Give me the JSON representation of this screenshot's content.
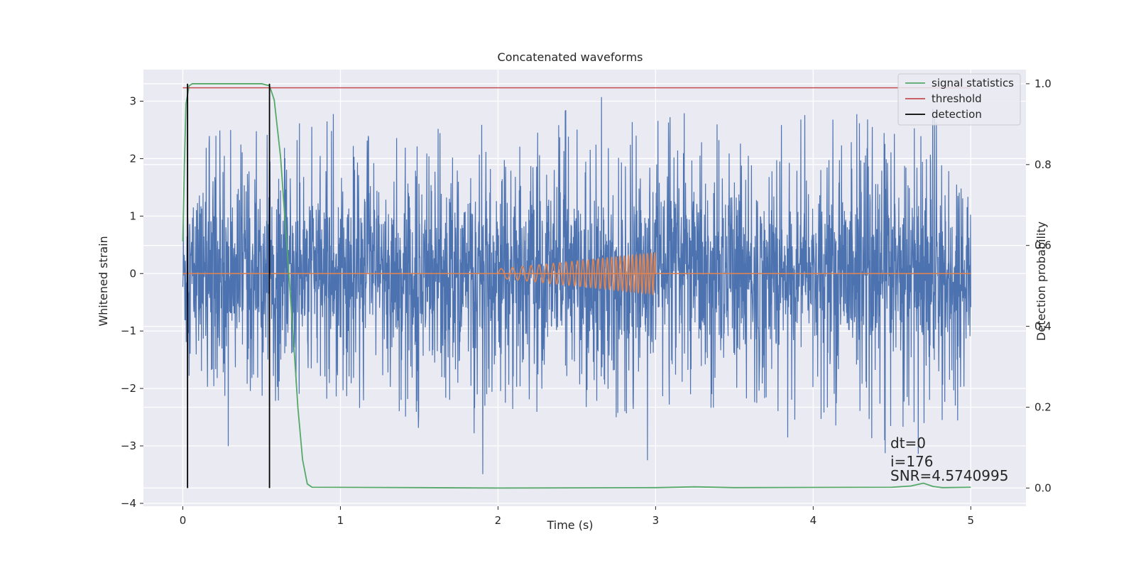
{
  "chart_data": {
    "type": "line",
    "title": "Concatenated waveforms",
    "xlabel": "Time (s)",
    "ylabel": "Whitened strain",
    "y2label": "Detection probability",
    "xlim": [
      -0.25,
      5.35
    ],
    "ylim": [
      -4.05,
      3.55
    ],
    "y2lim": [
      -0.045,
      1.035
    ],
    "xticks": [
      0,
      1,
      2,
      3,
      4,
      5
    ],
    "yticks": [
      -4,
      -3,
      -2,
      -1,
      0,
      1,
      2,
      3
    ],
    "y2ticks": [
      0.0,
      0.2,
      0.4,
      0.6,
      0.8,
      1.0
    ],
    "xtick_labels": [
      "0",
      "1",
      "2",
      "3",
      "4",
      "5"
    ],
    "ytick_labels": [
      "−4",
      "−3",
      "−2",
      "−1",
      "0",
      "1",
      "2",
      "3"
    ],
    "y2tick_labels": [
      "0.0",
      "0.2",
      "0.4",
      "0.6",
      "0.8",
      "1.0"
    ],
    "grid": true,
    "legend_position": "top-right",
    "legend": [
      {
        "label": "signal statistics",
        "color": "#55a868"
      },
      {
        "label": "threshold",
        "color": "#c44e52"
      },
      {
        "label": "detection",
        "color": "#000000"
      }
    ],
    "strain": {
      "color": "#4c72b0",
      "x_range": [
        0,
        5
      ],
      "core_sigma": 0.75,
      "envelope": [
        [
          0.0,
          0.8,
          -1.7
        ],
        [
          0.05,
          2.0,
          -1.8
        ],
        [
          0.1,
          2.45,
          -2.0
        ],
        [
          0.2,
          2.4,
          -2.3
        ],
        [
          0.3,
          3.25,
          -3.1
        ],
        [
          0.4,
          2.6,
          -2.0
        ],
        [
          0.5,
          2.6,
          -2.5
        ],
        [
          0.6,
          2.2,
          -2.3
        ],
        [
          0.7,
          2.7,
          -2.2
        ],
        [
          0.8,
          2.65,
          -2.4
        ],
        [
          0.95,
          3.15,
          -2.5
        ],
        [
          1.1,
          2.4,
          -2.3
        ],
        [
          1.25,
          3.1,
          -2.7
        ],
        [
          1.4,
          2.6,
          -2.4
        ],
        [
          1.5,
          2.5,
          -3.45
        ],
        [
          1.6,
          3.2,
          -2.2
        ],
        [
          1.75,
          2.6,
          -2.2
        ],
        [
          1.9,
          3.15,
          -3.65
        ],
        [
          2.0,
          2.7,
          -2.4
        ],
        [
          2.2,
          2.5,
          -2.5
        ],
        [
          2.35,
          3.0,
          -2.2
        ],
        [
          2.5,
          2.8,
          -2.4
        ],
        [
          2.65,
          3.1,
          -2.3
        ],
        [
          2.8,
          2.8,
          -2.8
        ],
        [
          2.95,
          2.5,
          -3.45
        ],
        [
          3.05,
          3.35,
          -2.5
        ],
        [
          3.2,
          3.45,
          -2.4
        ],
        [
          3.4,
          2.9,
          -2.5
        ],
        [
          3.6,
          2.8,
          -2.6
        ],
        [
          3.8,
          2.9,
          -3.15
        ],
        [
          4.0,
          2.8,
          -2.6
        ],
        [
          4.2,
          2.9,
          -2.7
        ],
        [
          4.4,
          2.6,
          -3.0
        ],
        [
          4.6,
          2.9,
          -3.5
        ],
        [
          4.8,
          3.1,
          -2.8
        ],
        [
          4.9,
          2.6,
          -2.8
        ],
        [
          5.0,
          1.05,
          -1.5
        ]
      ]
    },
    "injected_waveform": {
      "color": "#dd8452",
      "x_range": [
        2.0,
        3.0
      ],
      "amplitude": [
        0.08,
        0.36
      ],
      "frequency_hz": [
        12,
        45
      ],
      "baseline_x_range": [
        0,
        5
      ],
      "baseline_y": 0
    },
    "signal_statistics": {
      "color": "#55a868",
      "axis": "right",
      "points": [
        [
          0.0,
          0.61
        ],
        [
          0.01,
          0.8
        ],
        [
          0.02,
          0.95
        ],
        [
          0.04,
          0.995
        ],
        [
          0.06,
          1.0
        ],
        [
          0.5,
          1.0
        ],
        [
          0.55,
          0.995
        ],
        [
          0.58,
          0.96
        ],
        [
          0.62,
          0.82
        ],
        [
          0.66,
          0.6
        ],
        [
          0.7,
          0.38
        ],
        [
          0.73,
          0.2
        ],
        [
          0.76,
          0.07
        ],
        [
          0.79,
          0.01
        ],
        [
          0.82,
          0.002
        ],
        [
          1.5,
          0.001
        ],
        [
          2.0,
          0.0
        ],
        [
          3.0,
          0.001
        ],
        [
          3.25,
          0.003
        ],
        [
          3.5,
          0.001
        ],
        [
          4.5,
          0.002
        ],
        [
          4.62,
          0.005
        ],
        [
          4.7,
          0.012
        ],
        [
          4.76,
          0.004
        ],
        [
          4.82,
          0.001
        ],
        [
          5.0,
          0.002
        ]
      ]
    },
    "threshold": {
      "color": "#c44e52",
      "axis": "right",
      "value": 0.99,
      "x_range": [
        0,
        5
      ]
    },
    "detections": {
      "color": "#000000",
      "axis": "right",
      "x": [
        0.03,
        0.55
      ],
      "y_range": [
        0.0,
        1.0
      ]
    },
    "annotations": [
      "dt=0",
      "i=176",
      "SNR=4.5740995"
    ]
  }
}
